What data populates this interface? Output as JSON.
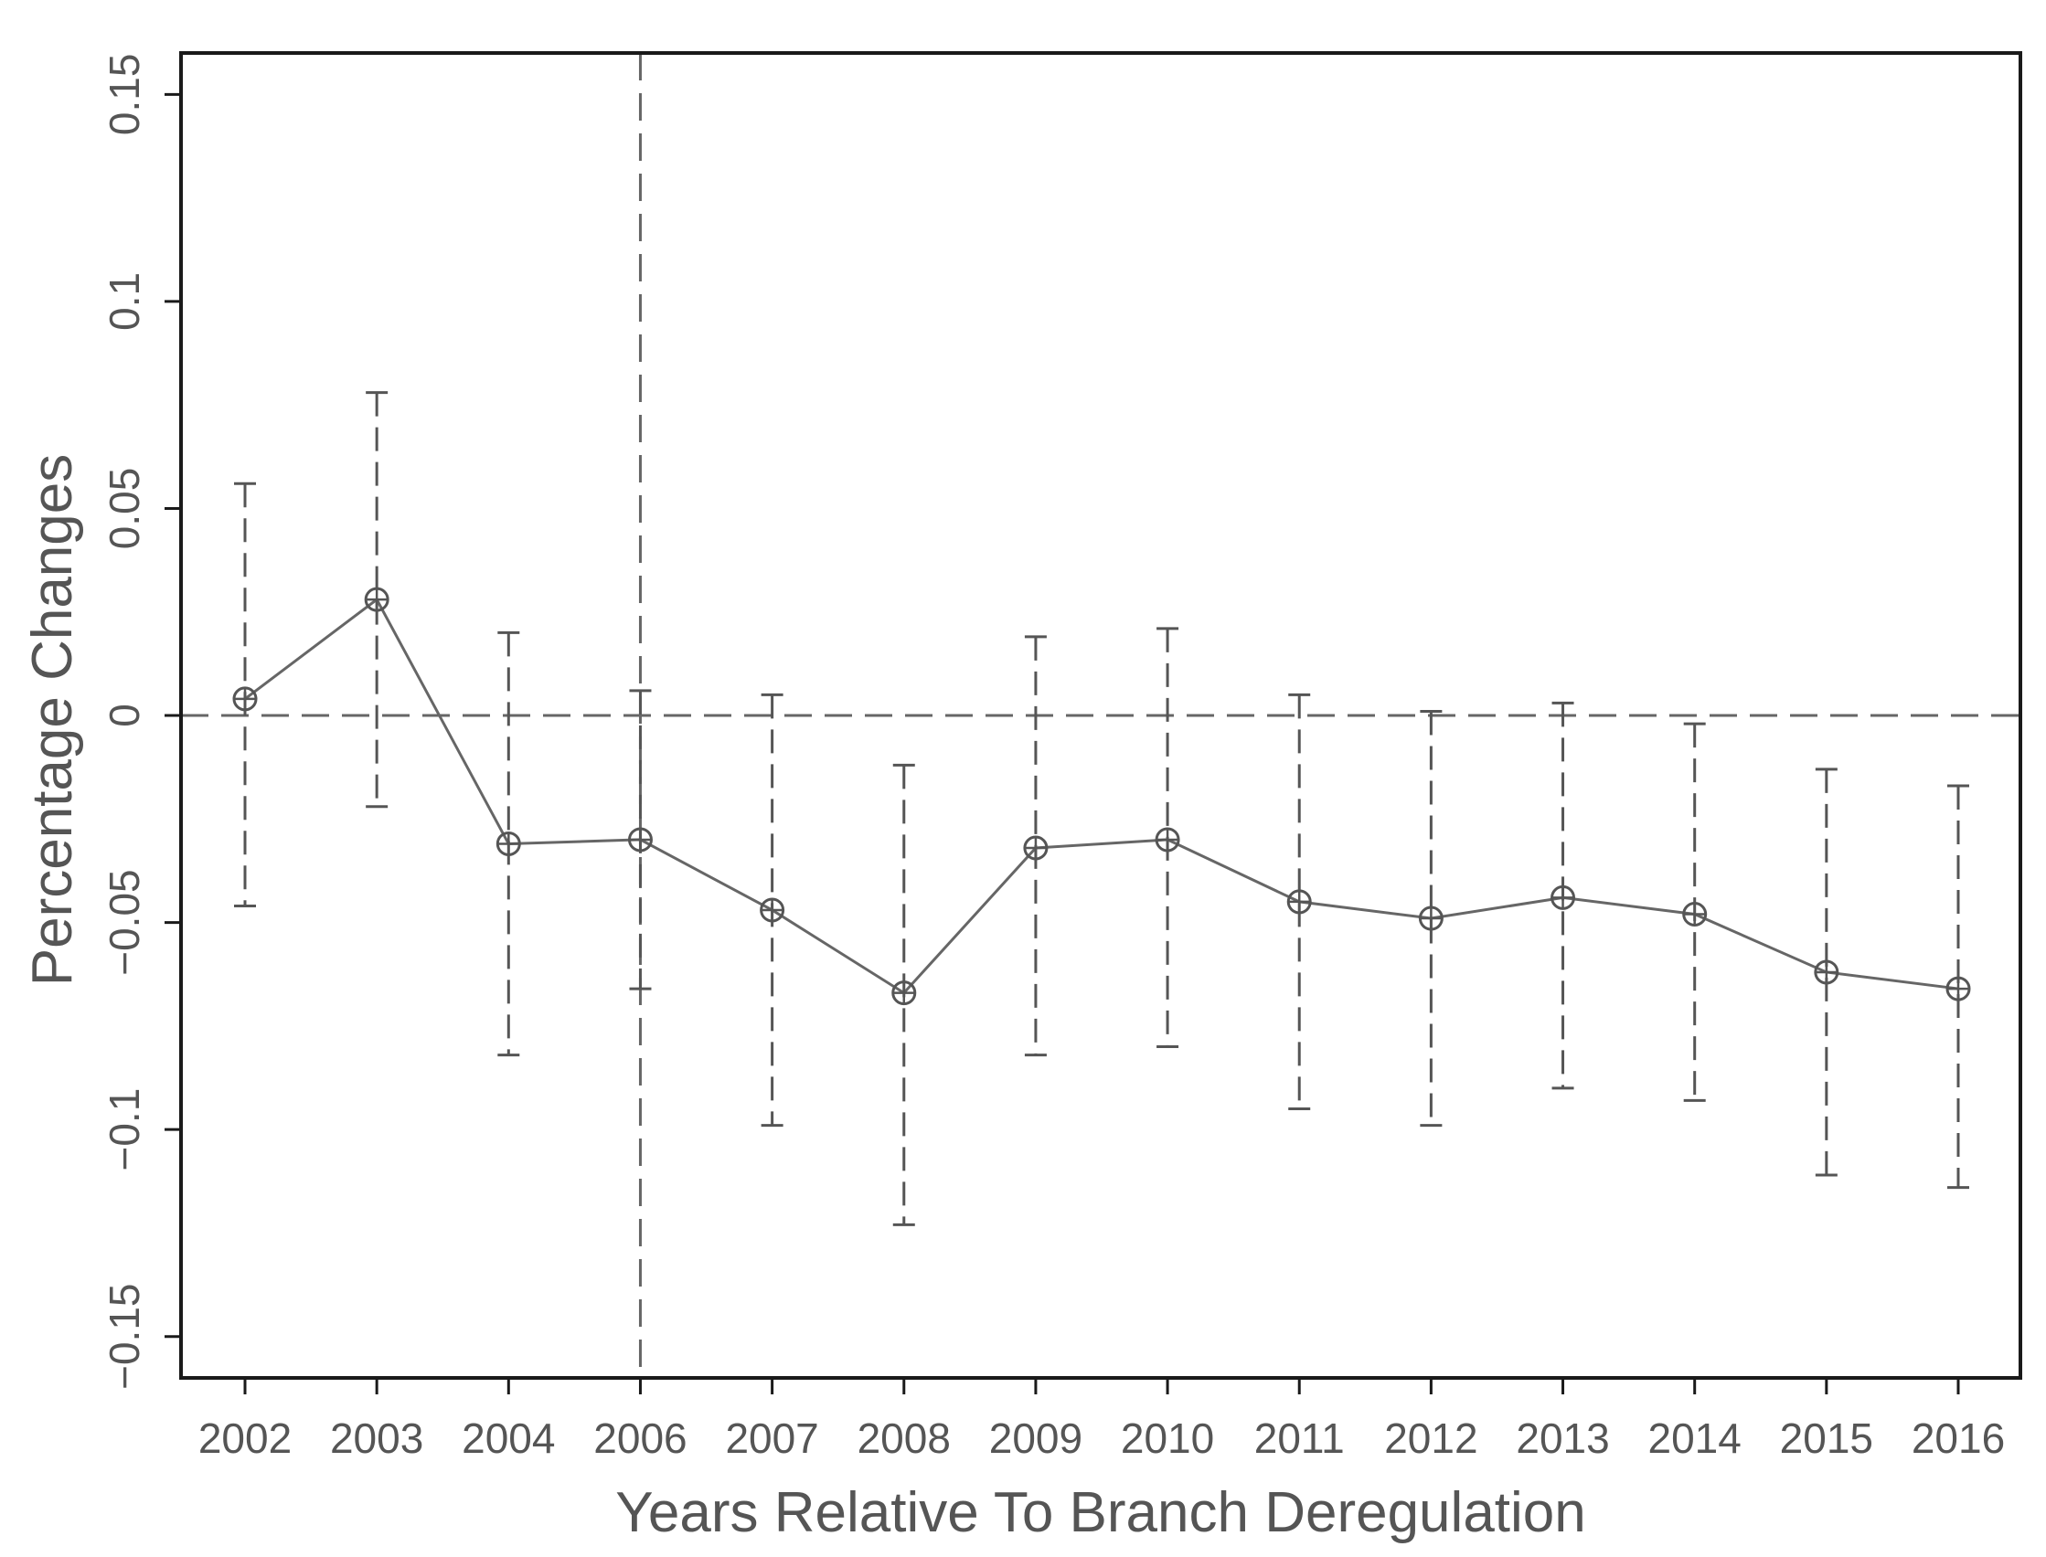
{
  "chart_data": {
    "type": "line",
    "title": "",
    "xlabel": "Years Relative To Branch Deregulation",
    "ylabel": "Percentage Changes",
    "categories": [
      "2002",
      "2003",
      "2004",
      "2006",
      "2007",
      "2008",
      "2009",
      "2010",
      "2011",
      "2012",
      "2013",
      "2014",
      "2015",
      "2016"
    ],
    "values": [
      0.004,
      0.028,
      -0.031,
      -0.03,
      -0.047,
      -0.067,
      -0.032,
      -0.03,
      -0.045,
      -0.049,
      -0.044,
      -0.048,
      -0.062,
      -0.066
    ],
    "ci_upper": [
      0.056,
      0.078,
      0.02,
      0.006,
      0.005,
      -0.012,
      0.019,
      0.021,
      0.005,
      0.001,
      0.003,
      -0.002,
      -0.013,
      -0.017
    ],
    "ci_lower": [
      -0.046,
      -0.022,
      -0.082,
      -0.066,
      -0.099,
      -0.123,
      -0.082,
      -0.08,
      -0.095,
      -0.099,
      -0.09,
      -0.093,
      -0.111,
      -0.114
    ],
    "y_ticks": [
      {
        "value": 0.15,
        "label": "0.15"
      },
      {
        "value": 0.1,
        "label": "0.1"
      },
      {
        "value": 0.05,
        "label": "0.05"
      },
      {
        "value": 0,
        "label": "0"
      },
      {
        "value": -0.05,
        "label": "−0.05"
      },
      {
        "value": -0.1,
        "label": "−0.1"
      },
      {
        "value": -0.15,
        "label": "−0.15"
      }
    ],
    "ylim": [
      -0.16,
      0.16
    ],
    "reference_lines": {
      "horizontal_y": 0,
      "vertical_at_category": "2006"
    },
    "grid": false,
    "legend": "none",
    "colors": {
      "frame": "#1a1a1a",
      "series": "#666666",
      "marker": "#555555",
      "text": "#555555"
    }
  }
}
